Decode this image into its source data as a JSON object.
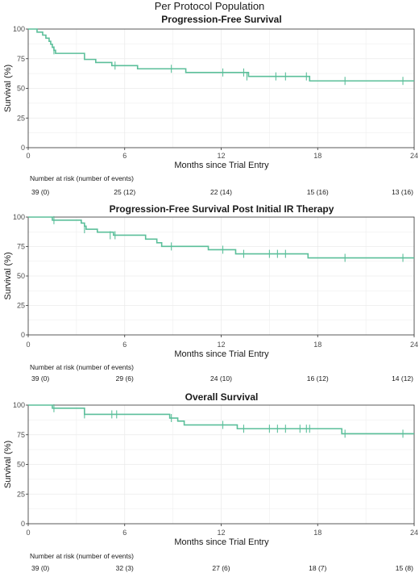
{
  "page_title": "Per Protocol Population",
  "colors": {
    "curve": "#5bbf9a",
    "grid": "#ebebeb",
    "frame": "#333333"
  },
  "chart_data": [
    {
      "type": "line",
      "subtype": "kaplan-meier",
      "title": "Progression-Free Survival",
      "xlabel": "Months since Trial Entry",
      "ylabel": "Survival (%)",
      "xlim": [
        0,
        24
      ],
      "ylim": [
        0,
        100
      ],
      "x_ticks": [
        0,
        6,
        12,
        18,
        24
      ],
      "y_ticks": [
        0,
        25,
        50,
        75,
        100
      ],
      "grid": true,
      "steps": [
        [
          0,
          100
        ],
        [
          0.55,
          97.4
        ],
        [
          0.9,
          94.9
        ],
        [
          1.1,
          92.3
        ],
        [
          1.3,
          89.7
        ],
        [
          1.4,
          87.2
        ],
        [
          1.5,
          84.6
        ],
        [
          1.6,
          82.1
        ],
        [
          1.7,
          79.5
        ],
        [
          3.5,
          74.4
        ],
        [
          4.2,
          71.8
        ],
        [
          5.2,
          69.2
        ],
        [
          6.8,
          66.5
        ],
        [
          9.8,
          63.4
        ],
        [
          13.7,
          60.1
        ],
        [
          17.5,
          56.3
        ],
        [
          24,
          56.3
        ]
      ],
      "censored": [
        [
          1.6,
          82.1
        ],
        [
          5.4,
          69.2
        ],
        [
          8.9,
          66.5
        ],
        [
          12.1,
          63.4
        ],
        [
          13.4,
          63.4
        ],
        [
          13.6,
          60.1
        ],
        [
          15.4,
          60.1
        ],
        [
          16.0,
          60.1
        ],
        [
          17.3,
          60.1
        ],
        [
          19.7,
          56.3
        ],
        [
          23.3,
          56.3
        ]
      ],
      "risk_title": "Number at risk (number of events)",
      "risk_table": [
        {
          "x": 0,
          "label": "39 (0)"
        },
        {
          "x": 6,
          "label": "25 (12)"
        },
        {
          "x": 12,
          "label": "22 (14)"
        },
        {
          "x": 18,
          "label": "15 (16)"
        },
        {
          "x": 24,
          "label": "13 (16)"
        }
      ]
    },
    {
      "type": "line",
      "subtype": "kaplan-meier",
      "title": "Progression-Free Survival Post Initial IR Therapy",
      "xlabel": "Months since Trial Entry",
      "ylabel": "Survival (%)",
      "xlim": [
        0,
        24
      ],
      "ylim": [
        0,
        100
      ],
      "x_ticks": [
        0,
        6,
        12,
        18,
        24
      ],
      "y_ticks": [
        0,
        25,
        50,
        75,
        100
      ],
      "grid": true,
      "steps": [
        [
          0,
          100
        ],
        [
          1.5,
          97.4
        ],
        [
          3.3,
          94.9
        ],
        [
          3.5,
          92.3
        ],
        [
          3.6,
          89.7
        ],
        [
          4.3,
          87.2
        ],
        [
          5.3,
          84.6
        ],
        [
          7.3,
          81.3
        ],
        [
          8.0,
          78.2
        ],
        [
          8.3,
          75.1
        ],
        [
          11.2,
          72.3
        ],
        [
          12.9,
          68.8
        ],
        [
          17.4,
          65.4
        ],
        [
          24,
          65.4
        ]
      ],
      "censored": [
        [
          1.6,
          97.4
        ],
        [
          3.5,
          89.7
        ],
        [
          5.1,
          84.6
        ],
        [
          5.4,
          84.6
        ],
        [
          8.9,
          75.1
        ],
        [
          12.1,
          72.3
        ],
        [
          13.4,
          68.8
        ],
        [
          15.0,
          68.8
        ],
        [
          15.5,
          68.8
        ],
        [
          16.0,
          68.8
        ],
        [
          19.7,
          65.4
        ],
        [
          23.3,
          65.4
        ]
      ],
      "risk_title": "Number at risk (number of events)",
      "risk_table": [
        {
          "x": 0,
          "label": "39 (0)"
        },
        {
          "x": 6,
          "label": "29 (6)"
        },
        {
          "x": 12,
          "label": "24 (10)"
        },
        {
          "x": 18,
          "label": "16 (12)"
        },
        {
          "x": 24,
          "label": "14 (12)"
        }
      ]
    },
    {
      "type": "line",
      "subtype": "kaplan-meier",
      "title": "Overall Survival",
      "xlabel": "Months since Trial Entry",
      "ylabel": "Survival (%)",
      "xlim": [
        0,
        24
      ],
      "ylim": [
        0,
        100
      ],
      "x_ticks": [
        0,
        6,
        12,
        18,
        24
      ],
      "y_ticks": [
        0,
        25,
        50,
        75,
        100
      ],
      "grid": true,
      "steps": [
        [
          0,
          100
        ],
        [
          1.5,
          97.4
        ],
        [
          3.5,
          92.2
        ],
        [
          8.8,
          89.1
        ],
        [
          9.3,
          86.5
        ],
        [
          9.7,
          83.3
        ],
        [
          13.0,
          80.1
        ],
        [
          19.5,
          75.9
        ],
        [
          24,
          75.9
        ]
      ],
      "censored": [
        [
          1.6,
          97.4
        ],
        [
          3.5,
          92.2
        ],
        [
          5.2,
          92.2
        ],
        [
          5.5,
          92.2
        ],
        [
          8.9,
          89.1
        ],
        [
          12.1,
          83.3
        ],
        [
          13.4,
          80.1
        ],
        [
          15.0,
          80.1
        ],
        [
          15.5,
          80.1
        ],
        [
          16.0,
          80.1
        ],
        [
          16.9,
          80.1
        ],
        [
          17.3,
          80.1
        ],
        [
          17.5,
          80.1
        ],
        [
          19.7,
          75.9
        ],
        [
          23.3,
          75.9
        ]
      ],
      "risk_title": "Number at risk (number of events)",
      "risk_table": [
        {
          "x": 0,
          "label": "39 (0)"
        },
        {
          "x": 6,
          "label": "32 (3)"
        },
        {
          "x": 12,
          "label": "27 (6)"
        },
        {
          "x": 18,
          "label": "18 (7)"
        },
        {
          "x": 24,
          "label": "15 (8)"
        }
      ]
    }
  ]
}
